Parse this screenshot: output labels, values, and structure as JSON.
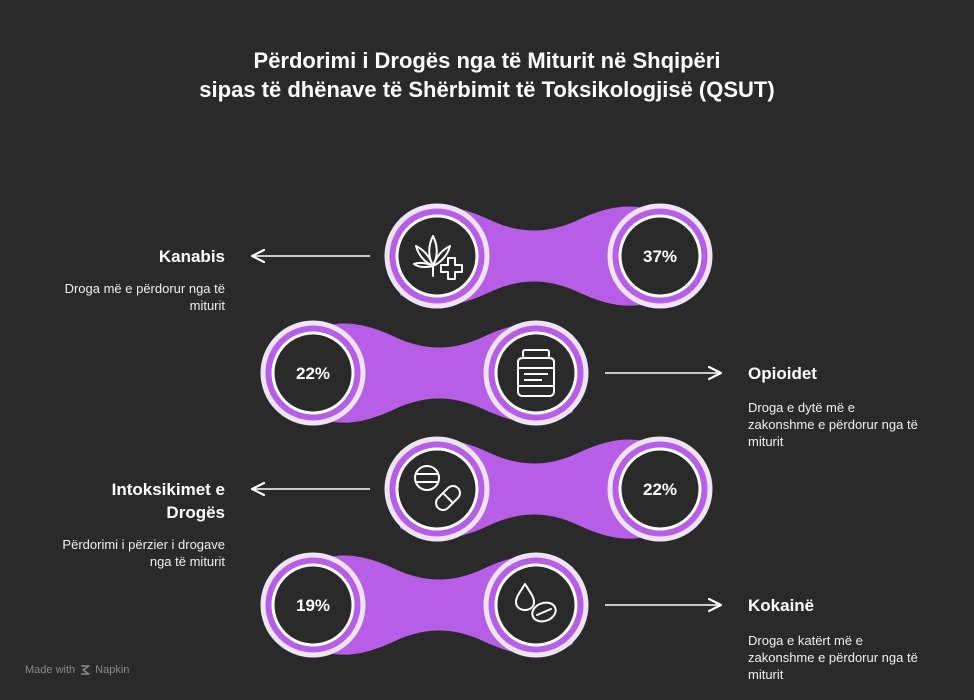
{
  "title": {
    "line1": "Përdorimi i Drogës nga të Miturit në Shqipëri",
    "line2": "sipas të dhënave të Shërbimit të Toksikologjisë (QSUT)"
  },
  "items": [
    {
      "label": "Kanabis",
      "description": "Droga më e përdorur nga të miturit",
      "value": "37%",
      "icon": "cannabis-medical-icon"
    },
    {
      "label": "Opioidet",
      "description": "Droga e dytë më e zakonshme e përdorur nga të miturit",
      "value": "22%",
      "icon": "pill-bottle-icon"
    },
    {
      "label": "Intoksikimet e Drogës",
      "description": "Përdorimi i përzier i drogave nga të miturit",
      "value": "22%",
      "icon": "pills-icon"
    },
    {
      "label": "Kokainë",
      "description": "Droga e katërt më e zakonshme e përdorur nga të miturit",
      "value": "19%",
      "icon": "drop-pill-icon"
    }
  ],
  "colors": {
    "accent": "#b65ee6",
    "ring": "#efe4f5",
    "background": "#2b2a2a",
    "circle": "#2b2a2a"
  },
  "footer": {
    "prefix": "Made with",
    "brand": "Napkin"
  }
}
